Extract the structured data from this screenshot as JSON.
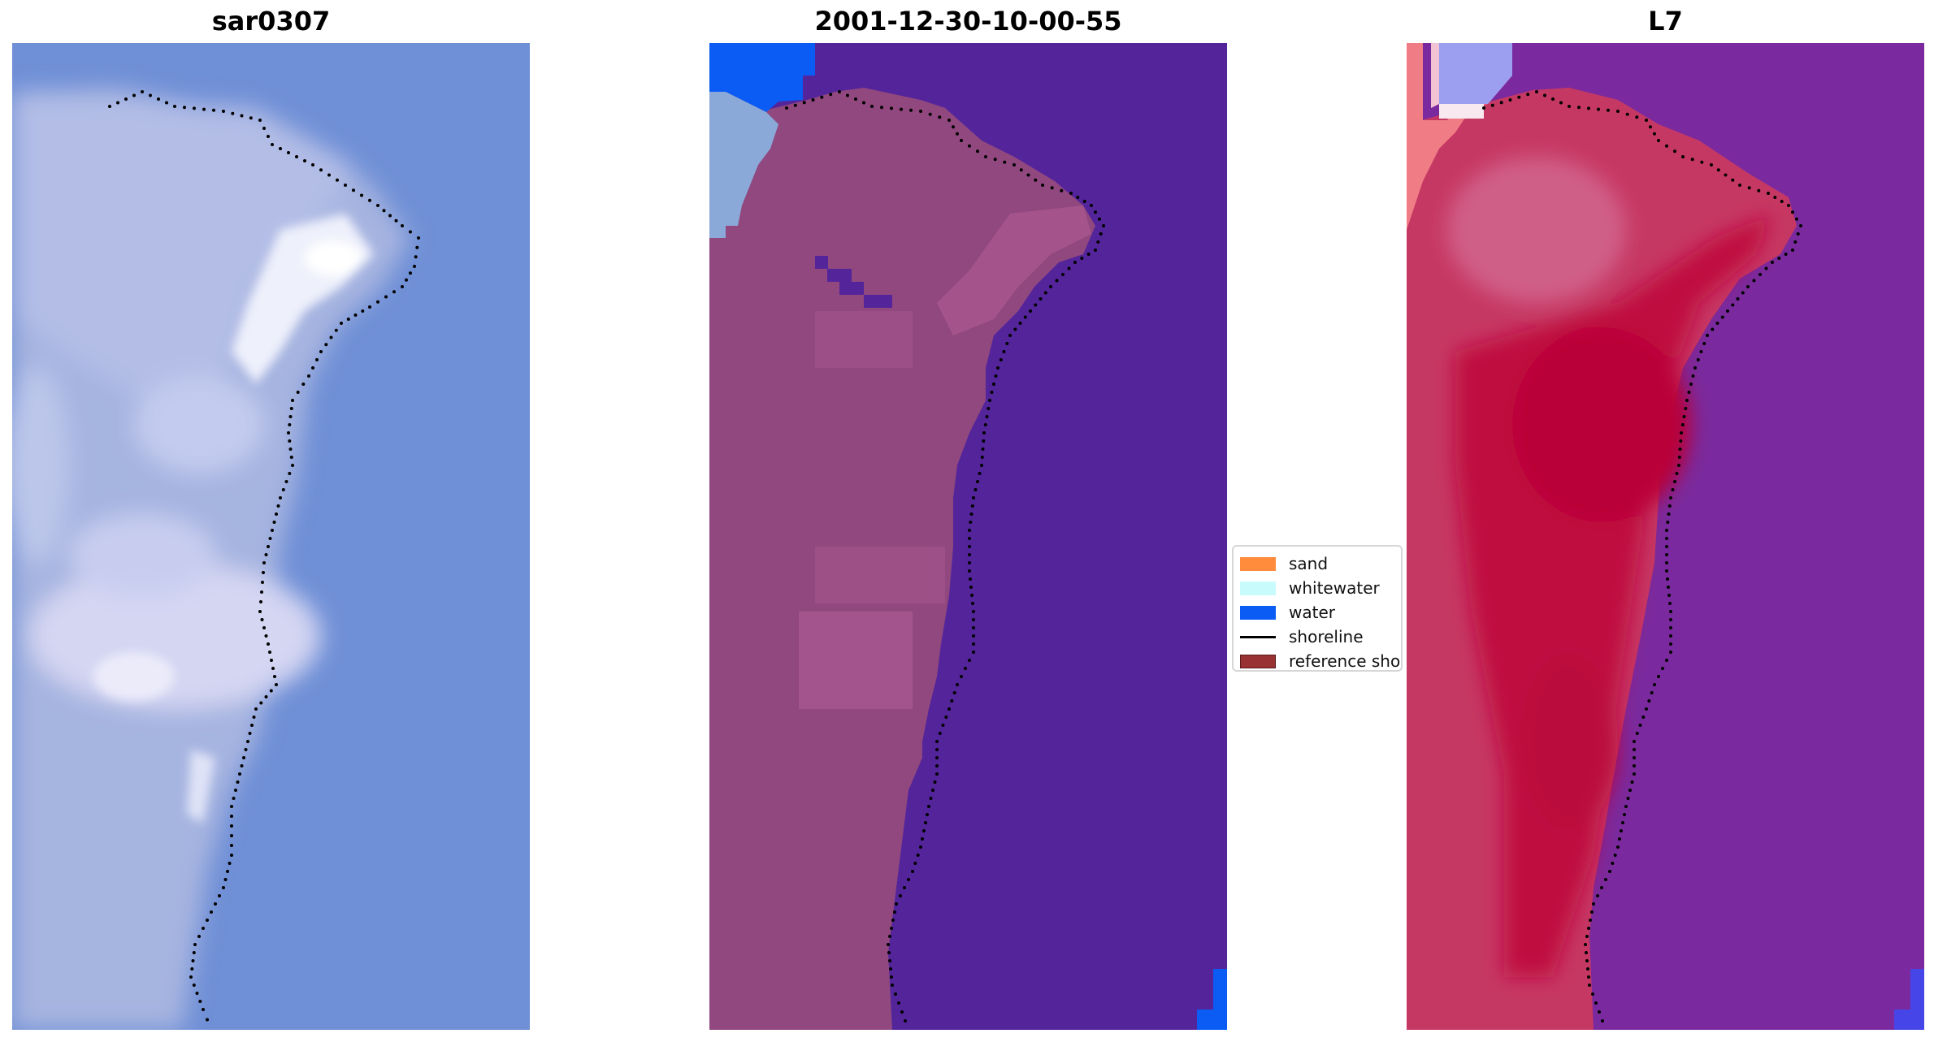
{
  "panels": [
    {
      "title": "sar0307"
    },
    {
      "title": "2001-12-30-10-00-55"
    },
    {
      "title": "L7"
    }
  ],
  "legend": {
    "entries": [
      {
        "label": "sand",
        "color": "#ff8c3c",
        "kind": "patch"
      },
      {
        "label": "whitewater",
        "color": "#c8fbfb",
        "kind": "patch"
      },
      {
        "label": "water",
        "color": "#0a5cf5",
        "kind": "patch"
      },
      {
        "label": "shoreline",
        "color": "#000000",
        "kind": "line"
      },
      {
        "label": "reference sho",
        "color": "#993333",
        "kind": "patch"
      }
    ]
  },
  "colors": {
    "sar_water": "#6f8fd6",
    "sar_land": "#a9b7e2",
    "class_water": "#53249a",
    "class_land": "#91487f",
    "class_pink": "#b75f95",
    "l7_water": "#7a2a9e",
    "l7_land": "#c42c5c",
    "l7_core": "#b9063a",
    "shoreline_dots": "#000000"
  }
}
